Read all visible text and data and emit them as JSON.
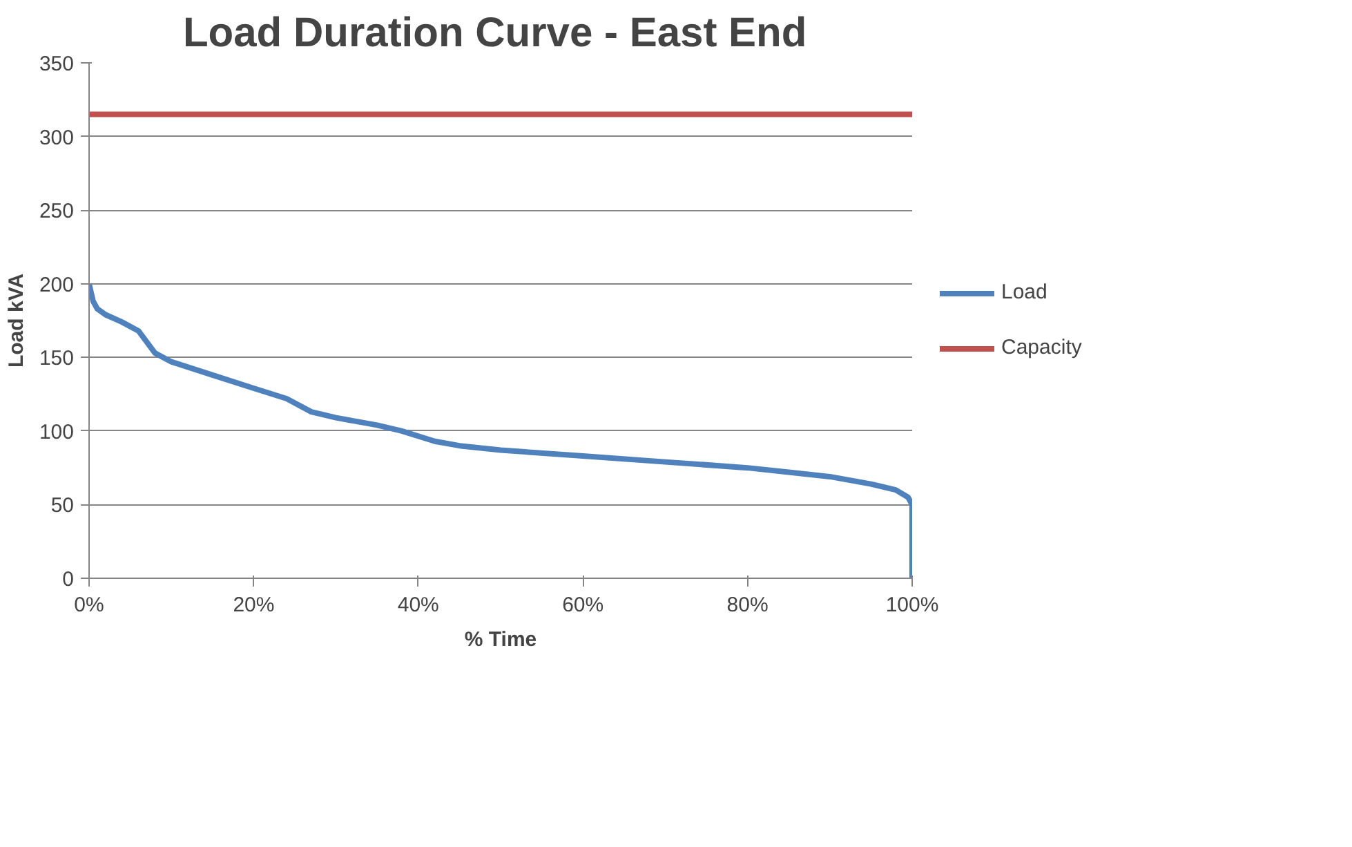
{
  "chart_data": {
    "type": "line",
    "title": "Load Duration Curve  - East End",
    "xlabel": "% Time",
    "ylabel": "Load kVA",
    "xlim": [
      0,
      100
    ],
    "xticks": [
      {
        "value": 0,
        "label": "0%"
      },
      {
        "value": 20,
        "label": "20%"
      },
      {
        "value": 40,
        "label": "40%"
      },
      {
        "value": 60,
        "label": "60%"
      },
      {
        "value": 80,
        "label": "80%"
      },
      {
        "value": 100,
        "label": "100%"
      }
    ],
    "ylim": [
      0,
      350
    ],
    "yticks": [
      0,
      50,
      100,
      150,
      200,
      250,
      300,
      350
    ],
    "grid": "y",
    "legend": "right",
    "series": [
      {
        "name": "Load",
        "color": "#4f81bd",
        "x": [
          0,
          0.5,
          1,
          2,
          4,
          6,
          8,
          10,
          15,
          20,
          24,
          27,
          30,
          35,
          38,
          42,
          45,
          50,
          60,
          70,
          80,
          85,
          90,
          95,
          98,
          99.5,
          100,
          100
        ],
        "values": [
          200,
          188,
          183,
          179,
          174,
          168,
          153,
          147,
          138,
          129,
          122,
          113,
          109,
          104,
          100,
          93,
          90,
          87,
          83,
          79,
          75,
          72,
          69,
          64,
          60,
          55,
          50,
          0
        ]
      },
      {
        "name": "Capacity",
        "color": "#c0504d",
        "x": [
          0,
          100
        ],
        "values": [
          315,
          315
        ]
      }
    ]
  }
}
